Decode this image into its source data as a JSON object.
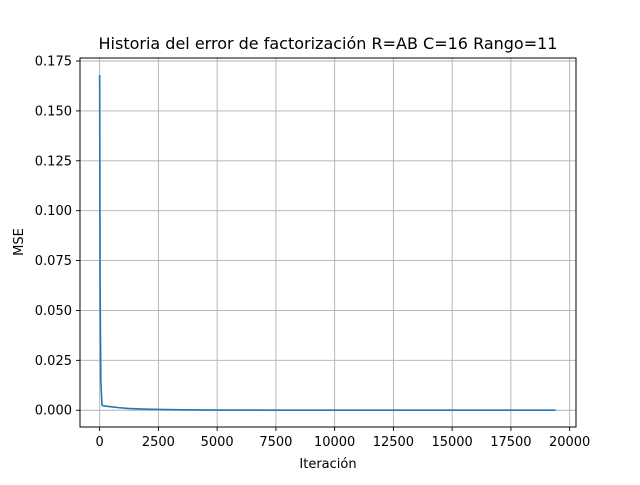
{
  "chart_data": {
    "type": "line",
    "title": "Historia del error de factorización R=AB C=16 Rango=11",
    "xlabel": "Iteración",
    "ylabel": "MSE",
    "xlim": [
      -836,
      20270
    ],
    "ylim": [
      -0.0084,
      0.1765
    ],
    "xticks": [
      0,
      2500,
      5000,
      7500,
      10000,
      12500,
      15000,
      17500,
      20000
    ],
    "xtick_labels": [
      "0",
      "2500",
      "5000",
      "7500",
      "10000",
      "12500",
      "15000",
      "17500",
      "20000"
    ],
    "yticks": [
      0.0,
      0.025,
      0.05,
      0.075,
      0.1,
      0.125,
      0.15,
      0.175
    ],
    "ytick_labels": [
      "0.000",
      "0.025",
      "0.050",
      "0.075",
      "0.100",
      "0.125",
      "0.150",
      "0.175"
    ],
    "grid": true,
    "series": [
      {
        "color": "#1f77b4",
        "x": [
          0,
          20,
          50,
          100,
          150,
          300,
          500,
          800,
          1200,
          1800,
          2500,
          3500,
          5000,
          7500,
          10000,
          12500,
          15000,
          17500,
          19400
        ],
        "y": [
          0.168,
          0.06,
          0.015,
          0.0025,
          0.0022,
          0.002,
          0.0017,
          0.0013,
          0.0009,
          0.0006,
          0.0004,
          0.0002,
          0.0001,
          5e-05,
          3e-05,
          2e-05,
          1e-05,
          1e-05,
          1e-05
        ]
      }
    ]
  }
}
